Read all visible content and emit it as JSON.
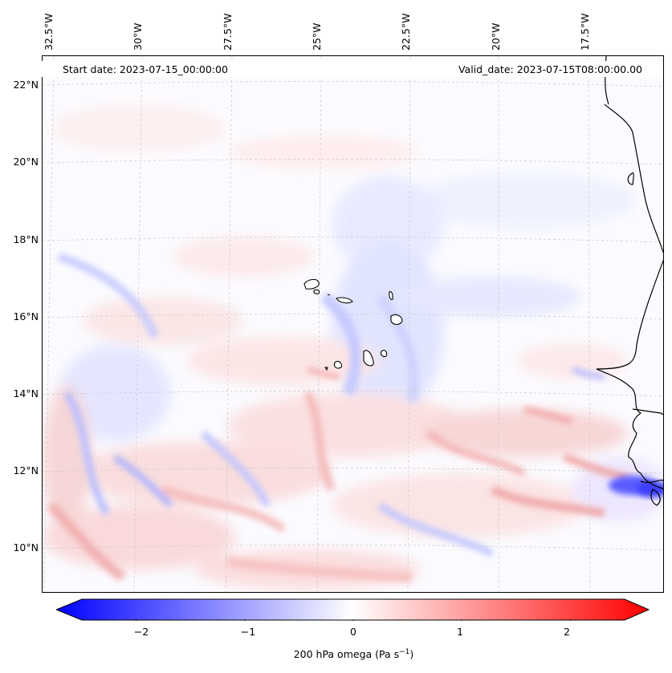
{
  "header": {
    "start_date": "Start date: 2023-07-15_00:00:00",
    "valid_date": "Valid_date: 2023-07-15T08:00:00.00"
  },
  "map": {
    "region": "Cape Verde / West Africa coast",
    "lon_labels": [
      "32.5°W",
      "30°W",
      "27.5°W",
      "25°W",
      "22.5°W",
      "20°W",
      "17.5°W"
    ],
    "lat_labels": [
      "22°N",
      "20°N",
      "18°N",
      "16°N",
      "14°N",
      "12°N",
      "10°N"
    ]
  },
  "colorbar": {
    "label_prefix": "200 hPa omega (Pa s",
    "label_exp": "−1",
    "label_suffix": ")",
    "ticks": [
      "−2",
      "−1",
      "0",
      "1",
      "2"
    ],
    "tick_values": [
      -2,
      -1,
      0,
      1,
      2
    ],
    "range": [
      -2.5,
      2.5
    ],
    "colors": {
      "min": "#0000ff",
      "mid": "#ffffff",
      "max": "#ff0000"
    }
  }
}
